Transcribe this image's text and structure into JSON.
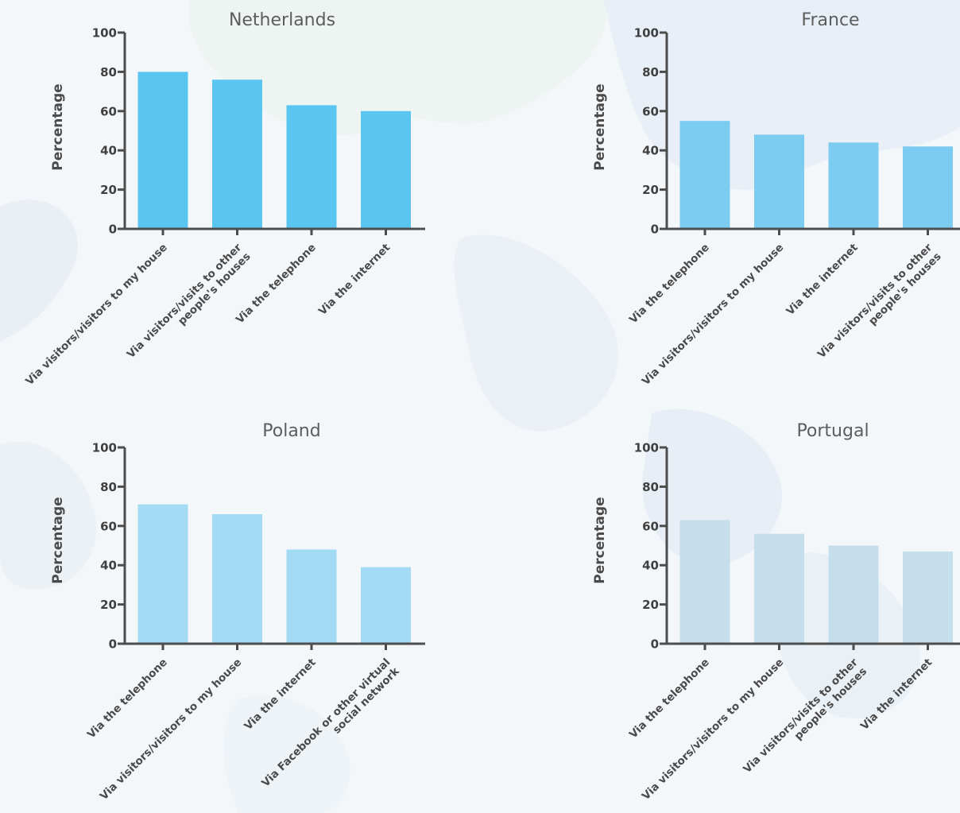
{
  "chart_data": [
    {
      "type": "bar",
      "title": "Netherlands",
      "ylabel": "Percentage",
      "ylim": [
        0,
        100
      ],
      "yticks": [
        0,
        20,
        40,
        60,
        80,
        100
      ],
      "color": "#5bc5f2",
      "categories": [
        [
          "Via visitors/visitors to my house"
        ],
        [
          "Via visitors/visits to other",
          "people's houses"
        ],
        [
          "Via the telephone"
        ],
        [
          "Via the internet"
        ]
      ],
      "values": [
        80,
        76,
        63,
        60
      ]
    },
    {
      "type": "bar",
      "title": "France",
      "ylabel": "Percentage",
      "ylim": [
        0,
        100
      ],
      "yticks": [
        0,
        20,
        40,
        60,
        80,
        100
      ],
      "color": "#7ccbf0",
      "categories": [
        [
          "Via the telephone"
        ],
        [
          "Via visitors/visitors to my house"
        ],
        [
          "Via the internet"
        ],
        [
          "Via visitors/visits to other",
          "people's houses"
        ]
      ],
      "values": [
        55,
        48,
        44,
        42
      ]
    },
    {
      "type": "bar",
      "title": "Poland",
      "ylabel": "Percentage",
      "ylim": [
        0,
        100
      ],
      "yticks": [
        0,
        20,
        40,
        60,
        80,
        100
      ],
      "color": "#a3daf4",
      "categories": [
        [
          "Via the telephone"
        ],
        [
          "Via visitors/visitors to my house"
        ],
        [
          "Via the internet"
        ],
        [
          "Via Facebook or other virtual",
          "social network"
        ]
      ],
      "values": [
        71,
        66,
        48,
        39
      ]
    },
    {
      "type": "bar",
      "title": "Portugal",
      "ylabel": "Percentage",
      "ylim": [
        0,
        100
      ],
      "yticks": [
        0,
        20,
        40,
        60,
        80,
        100
      ],
      "color": "#c5deeb",
      "categories": [
        [
          "Via the telephone"
        ],
        [
          "Via visitors/visitors to my house"
        ],
        [
          "Via visitors/visits to other",
          "people's houses"
        ],
        [
          "Via the internet"
        ]
      ],
      "values": [
        63,
        56,
        50,
        47
      ]
    }
  ]
}
